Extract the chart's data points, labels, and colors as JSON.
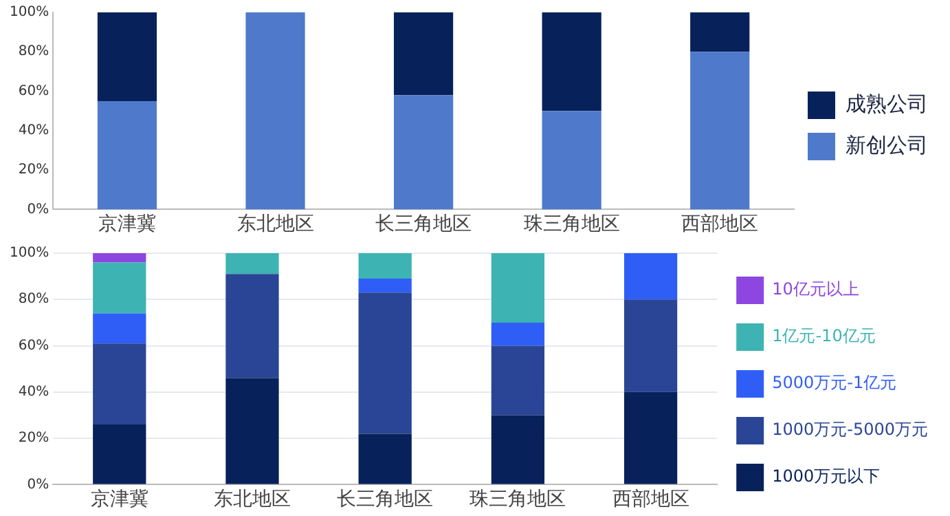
{
  "chart_data": [
    {
      "type": "bar",
      "stacked": true,
      "categories": [
        "京津冀",
        "东北地区",
        "长三角地区",
        "珠三角地区",
        "西部地区"
      ],
      "ylim": [
        0,
        100
      ],
      "yticks": [
        {
          "value": 0,
          "label": "0%"
        },
        {
          "value": 20,
          "label": "20%"
        },
        {
          "value": 40,
          "label": "40%"
        },
        {
          "value": 60,
          "label": "60%"
        },
        {
          "value": 80,
          "label": "80%"
        },
        {
          "value": 100,
          "label": "100%"
        }
      ],
      "grid": false,
      "legend": "right",
      "series": [
        {
          "name": "新创公司",
          "color": "#4f7acb",
          "values": [
            55,
            100,
            58,
            50,
            80
          ]
        },
        {
          "name": "成熟公司",
          "color": "#07225a",
          "values": [
            45,
            0,
            42,
            50,
            20
          ]
        }
      ]
    },
    {
      "type": "bar",
      "stacked": true,
      "categories": [
        "京津冀",
        "东北地区",
        "长三角地区",
        "珠三角地区",
        "西部地区"
      ],
      "ylim": [
        0,
        100
      ],
      "yticks": [
        {
          "value": 0,
          "label": "0%"
        },
        {
          "value": 20,
          "label": "20%"
        },
        {
          "value": 40,
          "label": "40%"
        },
        {
          "value": 60,
          "label": "60%"
        },
        {
          "value": 80,
          "label": "80%"
        },
        {
          "value": 100,
          "label": "100%"
        }
      ],
      "grid": "y",
      "legend": "right",
      "series": [
        {
          "name": "1000万元以下",
          "color": "#07225a",
          "values": [
            26,
            46,
            22,
            30,
            40
          ]
        },
        {
          "name": "1000万元-5000万元",
          "color": "#2a4595",
          "values": [
            35,
            45,
            61,
            30,
            40
          ]
        },
        {
          "name": "5000万元-1亿元",
          "color": "#2f5ef7",
          "values": [
            13,
            0,
            6,
            10,
            20
          ]
        },
        {
          "name": "1亿元-10亿元",
          "color": "#3db3b3",
          "values": [
            22,
            9,
            11,
            30,
            0
          ]
        },
        {
          "name": "10亿元以上",
          "color": "#8d47e0",
          "values": [
            4,
            0,
            0,
            0,
            0
          ]
        }
      ]
    }
  ]
}
